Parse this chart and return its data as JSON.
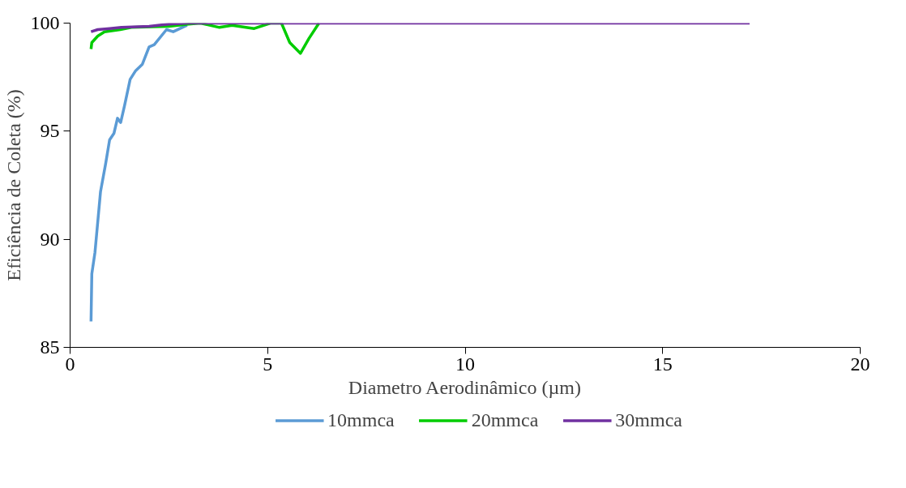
{
  "chart_data": {
    "type": "line",
    "xlabel": "Diametro Aerodinâmico (µm)",
    "ylabel": "Eficiência de Coleta (%)",
    "xlim": [
      0,
      20
    ],
    "ylim": [
      85,
      100
    ],
    "xticks": [
      0,
      5,
      10,
      15,
      20
    ],
    "yticks": [
      85,
      90,
      95,
      100
    ],
    "grid": false,
    "legend": "bottom",
    "marker": "none",
    "line_style": "solid",
    "series": [
      {
        "name": "10mmca",
        "color": "#5b9bd5",
        "x": [
          0.53,
          0.55,
          0.63,
          0.77,
          0.9,
          1.0,
          1.11,
          1.2,
          1.28,
          1.38,
          1.52,
          1.66,
          1.83,
          2.0,
          2.13,
          2.44,
          2.61,
          2.96
        ],
        "values": [
          86.2,
          88.4,
          89.4,
          92.2,
          93.5,
          94.6,
          94.9,
          95.6,
          95.4,
          96.2,
          97.4,
          97.8,
          98.1,
          98.9,
          99.0,
          99.7,
          99.6,
          99.9
        ]
      },
      {
        "name": "20mmca",
        "color": "#00cc00",
        "x": [
          0.53,
          0.55,
          0.7,
          0.87,
          1.27,
          1.55,
          2.5,
          3.0,
          3.3,
          3.78,
          4.1,
          4.66,
          5.07,
          5.35,
          5.56,
          5.83,
          6.05,
          6.3
        ],
        "values": [
          98.8,
          99.1,
          99.4,
          99.6,
          99.7,
          99.8,
          99.85,
          99.95,
          100,
          99.8,
          99.9,
          99.75,
          100,
          100,
          99.1,
          98.6,
          99.3,
          100
        ]
      },
      {
        "name": "30mmca",
        "color": "#7030a0",
        "x": [
          0.53,
          0.7,
          1.0,
          1.3,
          2.0,
          2.5,
          3.0,
          10,
          17.2
        ],
        "values": [
          99.6,
          99.7,
          99.75,
          99.8,
          99.85,
          99.95,
          100,
          100,
          100
        ]
      }
    ]
  }
}
